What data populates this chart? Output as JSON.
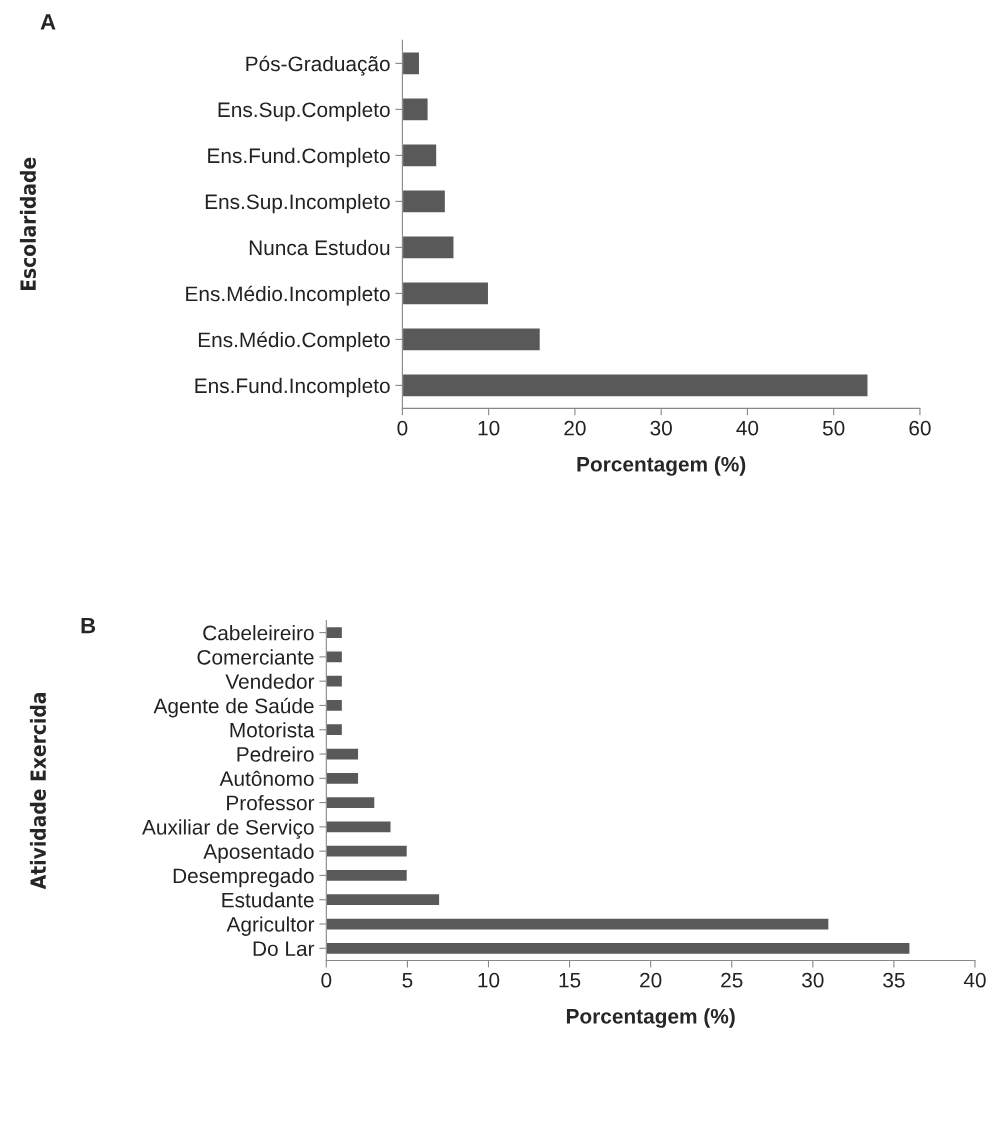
{
  "chart_data": [
    {
      "type": "bar",
      "orientation": "horizontal",
      "annotations": [
        "A"
      ],
      "ylabel": "Escolaridade",
      "xlabel": "Porcentagem (%)",
      "categories": [
        "Pós-Graduação",
        "Ens.Sup.Completo",
        "Ens.Fund.Completo",
        "Ens.Sup.Incompleto",
        "Nunca Estudou",
        "Ens.Médio.Incompleto",
        "Ens.Médio.Completo",
        "Ens.Fund.Incompleto"
      ],
      "values": [
        2,
        3,
        4,
        5,
        6,
        10,
        16,
        54
      ],
      "color": "#595959",
      "xlim": [
        0,
        60
      ],
      "xticks": [
        0,
        10,
        20,
        30,
        40,
        50,
        60
      ],
      "grid": false,
      "legend": false
    },
    {
      "type": "bar",
      "orientation": "horizontal",
      "annotations": [
        "B"
      ],
      "ylabel": "Atividade Exercida",
      "xlabel": "Porcentagem (%)",
      "categories": [
        "Cabeleireiro",
        "Comerciante",
        "Vendedor",
        "Agente de Saúde",
        "Motorista",
        "Pedreiro",
        "Autônomo",
        "Professor",
        "Auxiliar de Serviço",
        "Aposentado",
        "Desempregado",
        "Estudante",
        "Agricultor",
        "Do Lar"
      ],
      "values": [
        1,
        1,
        1,
        1,
        1,
        2,
        2,
        3,
        4,
        5,
        5,
        7,
        31,
        36
      ],
      "color": "#595959",
      "xlim": [
        0,
        40
      ],
      "xticks": [
        0,
        5,
        10,
        15,
        20,
        25,
        30,
        35,
        40
      ],
      "grid": false,
      "legend": false
    }
  ]
}
